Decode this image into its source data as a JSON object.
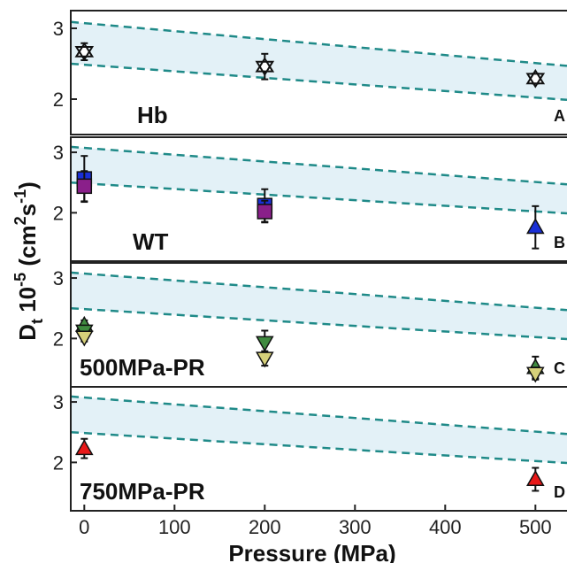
{
  "chart_data": {
    "type": "scatter",
    "xlabel": "Pressure (MPa)",
    "ylabel": {
      "base": "D",
      "sub": "t",
      "mid": " 10",
      "exp": "-5",
      "unit_open": " (cm",
      "unit_exp1": "2",
      "unit_mid": "s",
      "unit_exp2": "-1",
      "unit_close": ")"
    },
    "x_ticks": [
      0,
      100,
      200,
      300,
      400,
      500
    ],
    "xlim": [
      -15,
      535
    ],
    "y_ticks": [
      2,
      3
    ],
    "band": {
      "upper": [
        [
          -15,
          3.09
        ],
        [
          535,
          2.47
        ]
      ],
      "lower": [
        [
          -15,
          2.5
        ],
        [
          535,
          1.99
        ]
      ],
      "fill": "#e3f1f7",
      "line_color": "#1f8a88"
    },
    "panels": [
      {
        "label": "Hb",
        "letter": "A",
        "ylim": [
          1.5,
          3.25
        ],
        "series": [
          {
            "marker": "star",
            "fill": "#ffffff",
            "points": [
              {
                "x": 0,
                "y": 2.67,
                "err": 0.12
              },
              {
                "x": 200,
                "y": 2.46,
                "err": 0.18
              },
              {
                "x": 500,
                "y": 2.29,
                "err": 0.07
              }
            ]
          }
        ]
      },
      {
        "label": "WT",
        "letter": "B",
        "ylim": [
          1.2,
          3.25
        ],
        "series": [
          {
            "marker": "square",
            "fill": "#1a2fd6",
            "points": [
              {
                "x": 0,
                "y": 2.56,
                "err": 0.38
              },
              {
                "x": 200,
                "y": 2.12,
                "err": 0.27
              }
            ]
          },
          {
            "marker": "square",
            "fill": "#8a1f8a",
            "points": [
              {
                "x": 0,
                "y": 2.44,
                "err": 0.25
              },
              {
                "x": 200,
                "y": 2.02,
                "err": 0.18
              }
            ]
          },
          {
            "marker": "triangle-up",
            "fill": "#1a2fd6",
            "points": [
              {
                "x": 500,
                "y": 1.76,
                "err": 0.35
              }
            ]
          }
        ]
      },
      {
        "label": "500MPa-PR",
        "letter": "C",
        "ylim": [
          1.2,
          3.25
        ],
        "series": [
          {
            "marker": "triangle-up",
            "fill": "#3f8a3f",
            "points": [
              {
                "x": 0,
                "y": 2.22,
                "err": 0.08
              },
              {
                "x": 500,
                "y": 1.52,
                "err": 0.18
              }
            ]
          },
          {
            "marker": "triangle-down",
            "fill": "#3f8a3f",
            "points": [
              {
                "x": 0,
                "y": 2.12,
                "err": 0.06
              },
              {
                "x": 200,
                "y": 1.93,
                "err": 0.2
              }
            ]
          },
          {
            "marker": "triangle-down",
            "fill": "#d6d07a",
            "points": [
              {
                "x": 0,
                "y": 2.02,
                "err": 0.07
              },
              {
                "x": 200,
                "y": 1.67,
                "err": 0.12
              },
              {
                "x": 500,
                "y": 1.42,
                "err": 0.1
              }
            ]
          }
        ]
      },
      {
        "label": "750MPa-PR",
        "letter": "D",
        "ylim": [
          1.2,
          3.25
        ],
        "series": [
          {
            "marker": "triangle-up",
            "fill": "#e81818",
            "points": [
              {
                "x": 0,
                "y": 2.23,
                "err": 0.16
              },
              {
                "x": 500,
                "y": 1.72,
                "err": 0.19
              }
            ]
          }
        ]
      }
    ]
  }
}
